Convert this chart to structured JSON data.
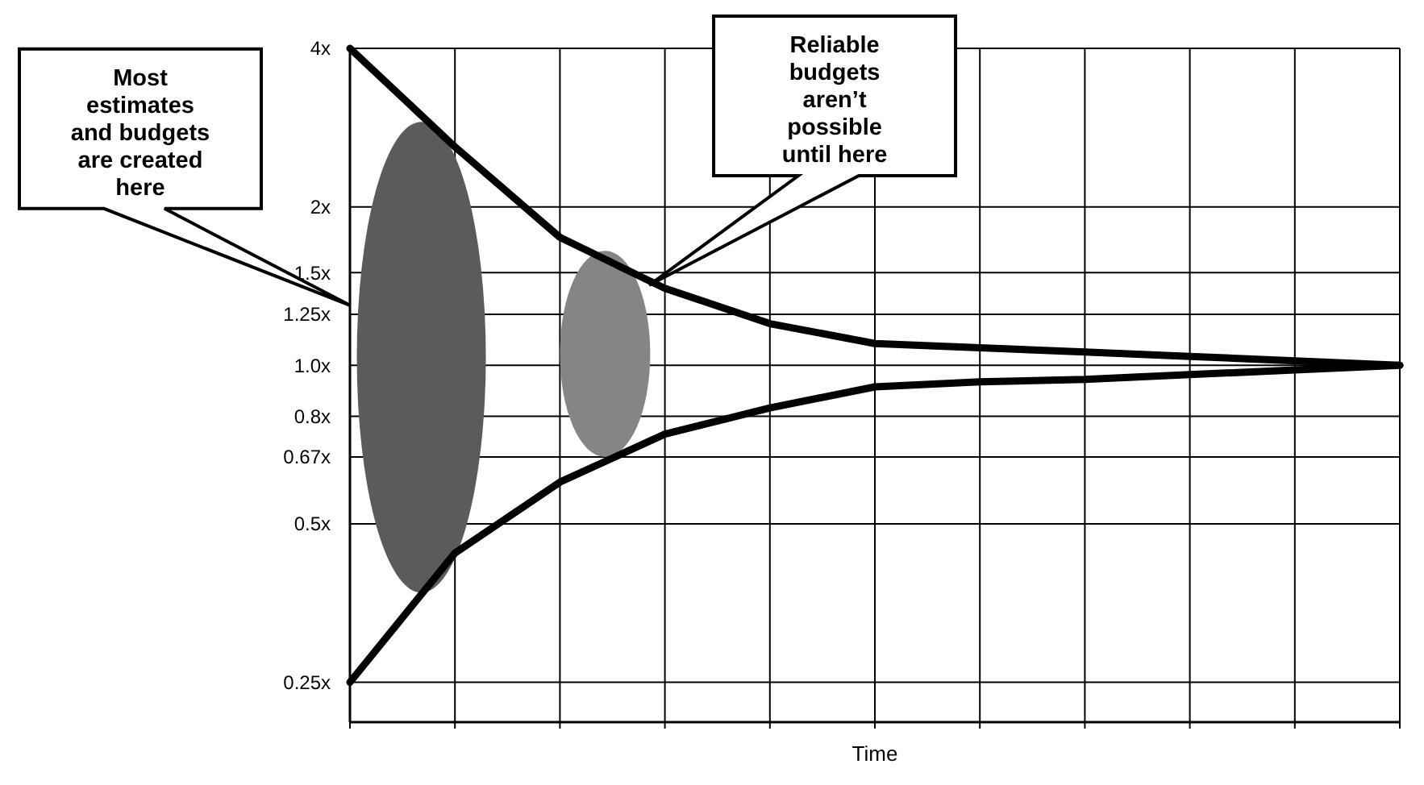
{
  "chart_data": {
    "type": "line",
    "xlabel": "Time",
    "categories": [
      null,
      null,
      null,
      null,
      null,
      null,
      null,
      null,
      null,
      null,
      null
    ],
    "series": [
      {
        "color": "#000000",
        "values": [
          4,
          2.6,
          1.75,
          1.4,
          1.2,
          1.1,
          1.08,
          1.06,
          1.04,
          1.02,
          1.0
        ]
      },
      {
        "color": "#000000",
        "values": [
          0.25,
          0.44,
          0.6,
          0.74,
          0.83,
          0.91,
          0.93,
          0.94,
          0.96,
          0.98,
          1.0
        ]
      }
    ],
    "ylim": [
      0.21,
      4
    ],
    "log": true,
    "yticks": [
      {
        "value": 4,
        "label": "4x"
      },
      {
        "value": 2,
        "label": "2x"
      },
      {
        "value": 1.5,
        "label": "1.5x"
      },
      {
        "value": 1.25,
        "label": "1.25x"
      },
      {
        "value": 1,
        "label": "1.0x"
      },
      {
        "value": 0.8,
        "label": "0.8x"
      },
      {
        "value": 0.67,
        "label": "0.67x"
      },
      {
        "value": 0.5,
        "label": "0.5x"
      },
      {
        "value": 0.25,
        "label": "0.25x"
      }
    ],
    "grid": true,
    "marker": "none",
    "line_style": "solid",
    "tick_labels": "y",
    "annotations": [
      "Most estimates and budgets are created here",
      "Reliable budgets aren’t possible until here"
    ]
  }
}
